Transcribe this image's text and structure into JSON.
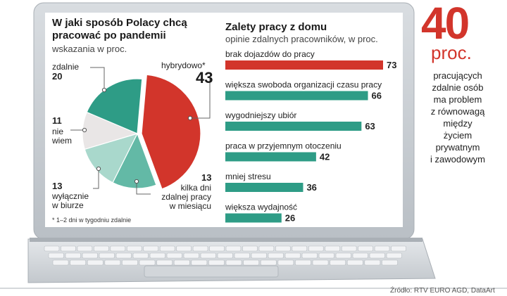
{
  "pie": {
    "title_line1": "W jaki sposób Polacy chcą",
    "title_line2": "pracować po pandemii",
    "subtitle": "wskazania w proc.",
    "footnote": "* 1–2 dni w tygodniu zdalnie",
    "labels": {
      "hybrid": "hybrydowo*",
      "remote": "zdalnie",
      "dontknow_1": "nie",
      "dontknow_2": "wiem",
      "office_1": "wyłącznie",
      "office_2": "w biurze",
      "fewdays_1": "kilka dni",
      "fewdays_2": "zdalnej pracy",
      "fewdays_3": "w miesiącu"
    },
    "values_text": {
      "hybrid": "43",
      "remote": "20",
      "dontknow": "11",
      "office": "13",
      "fewdays": "13"
    }
  },
  "bars": {
    "title": "Zalety pracy z domu",
    "subtitle": "opinie zdalnych pracowników, w proc."
  },
  "side": {
    "big_number": "40",
    "unit": "proc.",
    "line1": "pracujących",
    "line2": "zdalnie osób",
    "line3": "ma problem",
    "line4": "z równowagą",
    "line5": "między",
    "line6": "życiem",
    "line7": "prywatnym",
    "line8": "i zawodowym"
  },
  "source": "Źródło: RTV EURO AGD, DataArt",
  "colors": {
    "red": "#d2352b",
    "teal": "#2e9c86",
    "teal_mid": "#63b9a6",
    "teal_light": "#a9d8cc",
    "grey_light": "#e9e6e6"
  },
  "chart_data": [
    {
      "type": "pie",
      "title": "W jaki sposób Polacy chcą pracować po pandemii",
      "subtitle": "wskazania w proc.",
      "categories": [
        "hybrydowo*",
        "kilka dni zdalnej pracy w miesiącu",
        "wyłącznie w biurze",
        "nie wiem",
        "zdalnie"
      ],
      "values": [
        43,
        13,
        13,
        11,
        20
      ],
      "colors": [
        "#d2352b",
        "#63b9a6",
        "#a9d8cc",
        "#e9e6e6",
        "#2e9c86"
      ]
    },
    {
      "type": "bar",
      "orientation": "horizontal",
      "title": "Zalety pracy z domu",
      "subtitle": "opinie zdalnych pracowników, w proc.",
      "categories": [
        "brak dojazdów do pracy",
        "większa swoboda organizacji czasu pracy",
        "wygodniejszy ubiór",
        "praca w przyjemnym otoczeniu",
        "mniej stresu",
        "większa wydajność"
      ],
      "values": [
        73,
        66,
        63,
        42,
        36,
        26
      ],
      "colors": [
        "#d2352b",
        "#2e9c86",
        "#2e9c86",
        "#2e9c86",
        "#2e9c86",
        "#2e9c86"
      ],
      "xlim": [
        0,
        73
      ]
    }
  ]
}
